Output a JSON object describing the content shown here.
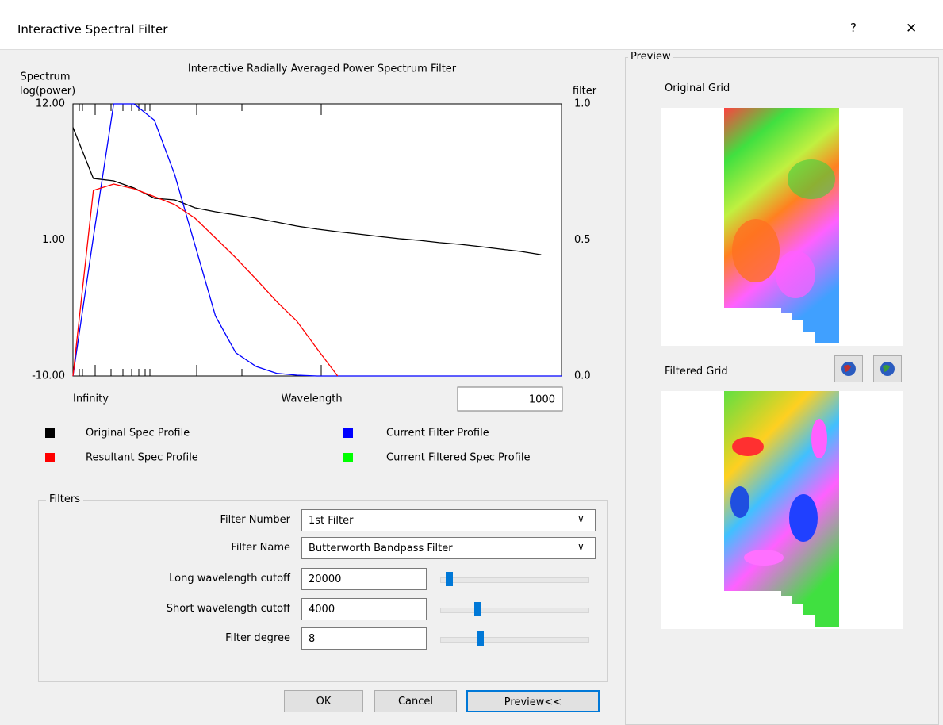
{
  "window": {
    "title": "Interactive Spectral Filter",
    "help": "?",
    "close": "✕"
  },
  "chart_data": {
    "type": "line",
    "title": "Interactive Radially Averaged Power Spectrum Filter",
    "y_label": "Spectrum",
    "y_label_unit": "log(power)",
    "y2_label": "filter",
    "x_start_label": "Infinity",
    "x_label": "Wavelength",
    "x_field": 1000,
    "ylim": [
      -10,
      12
    ],
    "yticks": [
      {
        "value": 12,
        "label": "12.00"
      },
      {
        "value": 1,
        "label": "1.00"
      },
      {
        "value": -10,
        "label": "-10.00"
      }
    ],
    "y2lim": [
      0,
      1
    ],
    "y2ticks": [
      {
        "value": 0,
        "label": "0.0"
      },
      {
        "value": 0.5,
        "label": "0.5"
      },
      {
        "value": 1,
        "label": "1.0"
      }
    ],
    "series": [
      {
        "name": "Original Spec Profile",
        "color": "#000000",
        "values": [
          10.1,
          5.97,
          5.78,
          5.2,
          4.37,
          4.24,
          3.6,
          3.28,
          3.02,
          2.76,
          2.44,
          2.12,
          1.87,
          1.67,
          1.48,
          1.29,
          1.1,
          0.97,
          0.78,
          0.65,
          0.46,
          0.26,
          0.07,
          -0.19,
          null
        ]
      },
      {
        "name": "Current Filter Profile",
        "color": "#0000ff",
        "axis": "y2",
        "values": [
          0,
          0.51,
          1,
          1,
          0.94,
          0.74,
          0.48,
          0.22,
          0.085,
          0.035,
          0.01,
          0.003,
          0,
          0,
          0,
          0,
          0,
          0,
          0,
          0,
          0,
          0,
          0,
          0,
          0
        ]
      },
      {
        "name": "Resultant Spec Profile",
        "color": "#ff0000",
        "values": [
          -10,
          5.0,
          5.52,
          5.14,
          4.5,
          3.86,
          2.76,
          1.16,
          -0.44,
          -2.18,
          -3.97,
          -5.57,
          -7.82,
          -10,
          null,
          null,
          null,
          null,
          null,
          null,
          null,
          null,
          null,
          null,
          null
        ]
      },
      {
        "name": "Current Filtered Spec Profile",
        "color": "#00ff00",
        "values": [
          null,
          null,
          null,
          null,
          null,
          null,
          null,
          null,
          null,
          null,
          null,
          null,
          null,
          null,
          null,
          null,
          null,
          null,
          null,
          null,
          null,
          null,
          null,
          null,
          null
        ]
      }
    ]
  },
  "filters": {
    "title": "Filters",
    "fields": [
      {
        "label": "Filter Number",
        "value": "1st Filter"
      },
      {
        "label": "Filter Name",
        "value": "Butterworth Bandpass Filter"
      },
      {
        "label": "Long wavelength cutoff",
        "value": 20000
      },
      {
        "label": "Short wavelength cutoff",
        "value": 4000
      },
      {
        "label": "Filter degree",
        "value": 8
      }
    ]
  },
  "buttons": [
    "OK",
    "Cancel",
    "Preview<<"
  ],
  "preview": {
    "title": "Preview",
    "original": "Original Grid",
    "filtered": "Filtered Grid"
  }
}
